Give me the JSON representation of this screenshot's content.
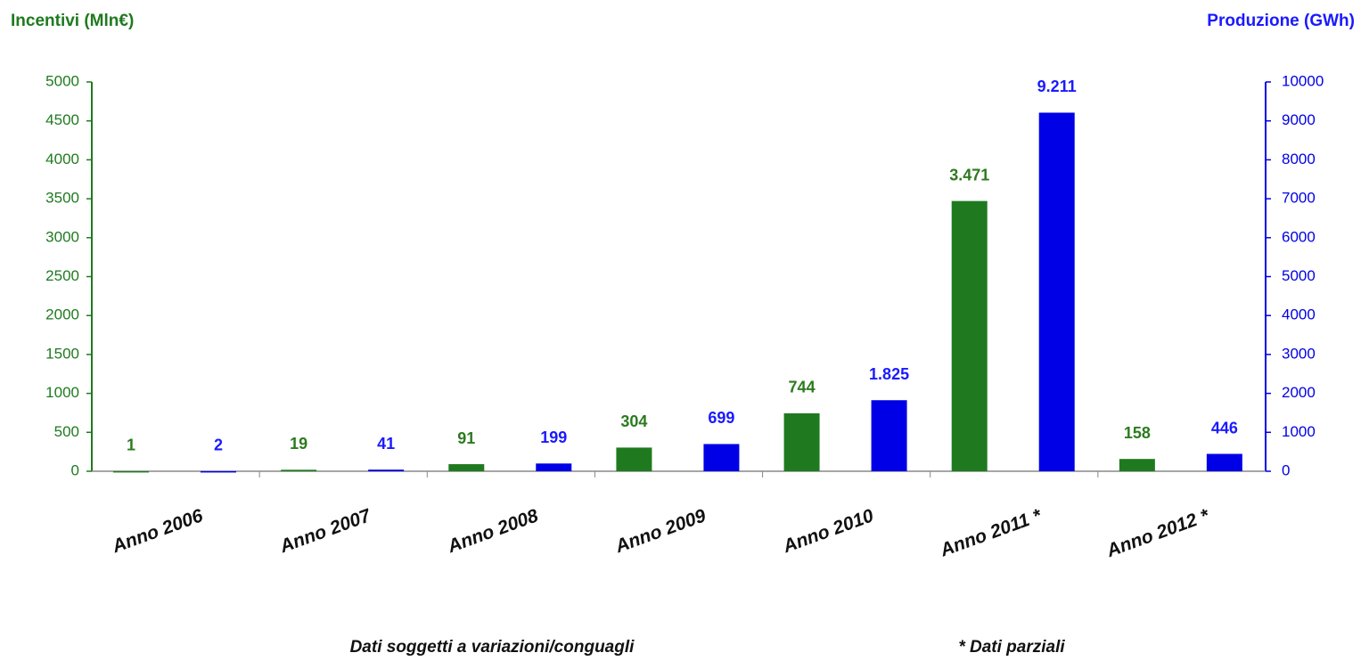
{
  "chart_data": {
    "type": "bar",
    "categories": [
      "Anno 2006",
      "Anno 2007",
      "Anno 2008",
      "Anno 2009",
      "Anno 2010",
      "Anno 2011 *",
      "Anno 2012 *"
    ],
    "series": [
      {
        "name": "Incentivi (Mln€)",
        "color": "#1f7a1f",
        "values": [
          1,
          19,
          91,
          304,
          744,
          3471,
          158
        ],
        "value_labels": [
          "1",
          "19",
          "91",
          "304",
          "744",
          "3.471",
          "158"
        ]
      },
      {
        "name": "Produzione (GWh)",
        "color": "#0000e6",
        "axis": "y2",
        "values": [
          2,
          41,
          199,
          699,
          1825,
          9211,
          446
        ],
        "value_labels": [
          "2",
          "41",
          "199",
          "699",
          "1.825",
          "9.211",
          "446"
        ]
      }
    ],
    "ylim": [
      0,
      5000
    ],
    "yticks": [
      0,
      500,
      1000,
      1500,
      2000,
      2500,
      3000,
      3500,
      4000,
      4500,
      5000
    ],
    "y2lim": [
      0,
      10000
    ],
    "y2ticks": [
      0,
      1000,
      2000,
      3000,
      4000,
      5000,
      6000,
      7000,
      8000,
      9000,
      10000
    ],
    "annotations": [
      "Dati soggetti a variazioni/conguagli",
      "* Dati parziali"
    ]
  }
}
